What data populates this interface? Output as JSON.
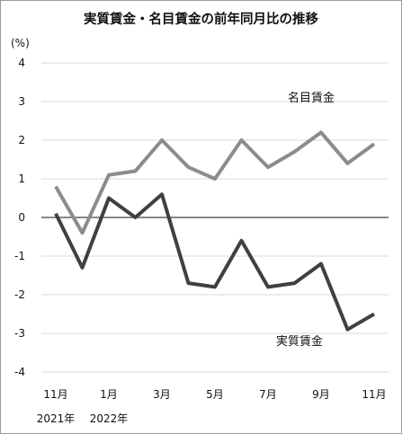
{
  "chart_data": {
    "type": "line",
    "title": "実質賃金・名目賃金の前年同月比の推移",
    "unit_label": "(%)",
    "ylim": [
      -4,
      4
    ],
    "yticks": [
      4,
      3,
      2,
      1,
      0,
      -1,
      -2,
      -3,
      -4
    ],
    "x": [
      "2021-11",
      "2021-12",
      "2022-01",
      "2022-02",
      "2022-03",
      "2022-04",
      "2022-05",
      "2022-06",
      "2022-07",
      "2022-08",
      "2022-09",
      "2022-10",
      "2022-11"
    ],
    "xtick_labels": [
      {
        "index": 0,
        "label": "11月"
      },
      {
        "index": 2,
        "label": "1月"
      },
      {
        "index": 4,
        "label": "3月"
      },
      {
        "index": 6,
        "label": "5月"
      },
      {
        "index": 8,
        "label": "7月"
      },
      {
        "index": 10,
        "label": "9月"
      },
      {
        "index": 12,
        "label": "11月"
      }
    ],
    "year_labels": [
      {
        "index": 0,
        "label": "2021年"
      },
      {
        "index": 2,
        "label": "2022年"
      }
    ],
    "grid": "horizontal",
    "zero_line": true,
    "series": [
      {
        "name": "名目賃金",
        "color": "#8c8c8c",
        "values": [
          0.8,
          -0.4,
          1.1,
          1.2,
          2.0,
          1.3,
          1.0,
          2.0,
          1.3,
          1.7,
          2.2,
          1.4,
          1.9
        ]
      },
      {
        "name": "実質賃金",
        "color": "#404040",
        "values": [
          0.1,
          -1.3,
          0.5,
          0.0,
          0.6,
          -1.7,
          -1.8,
          -0.6,
          -1.8,
          -1.7,
          -1.2,
          -2.9,
          -2.5
        ]
      }
    ]
  }
}
